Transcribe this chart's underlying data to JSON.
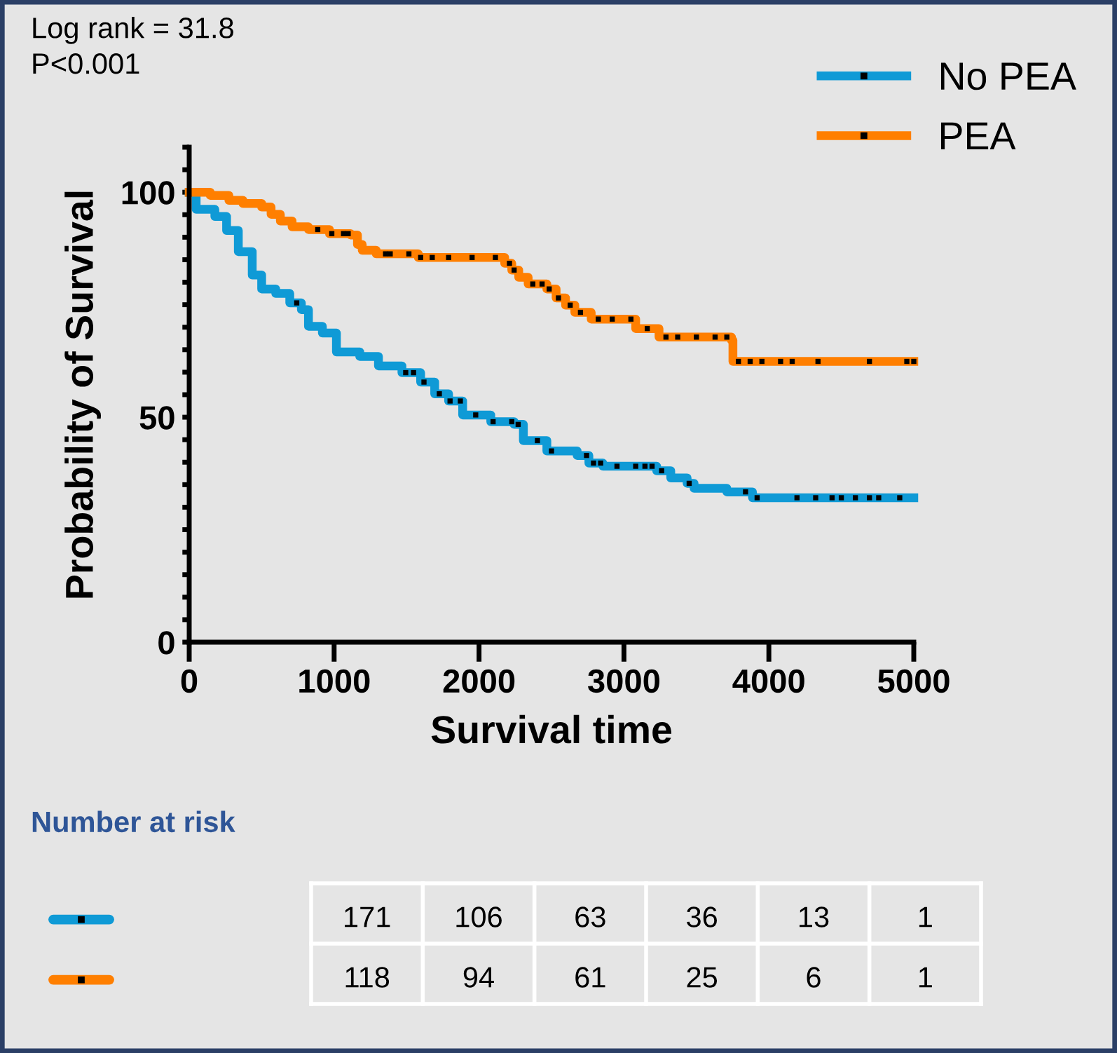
{
  "chart_data": {
    "type": "step",
    "xlabel": "Survival time",
    "ylabel": "Probability of Survival",
    "xlim": [
      0,
      5000
    ],
    "ylim": [
      0,
      110
    ],
    "xticks": [
      0,
      1000,
      2000,
      3000,
      4000,
      5000
    ],
    "yticks": [
      0,
      {
        "value": 5,
        "label": null
      },
      {
        "value": 10,
        "label": null
      },
      {
        "value": 15,
        "label": null
      },
      {
        "value": 20,
        "label": null
      },
      {
        "value": 25,
        "label": null
      },
      {
        "value": 30,
        "label": null
      },
      {
        "value": 35,
        "label": null
      },
      {
        "value": 40,
        "label": null
      },
      {
        "value": 45,
        "label": null
      },
      50,
      {
        "value": 55,
        "label": null
      },
      {
        "value": 60,
        "label": null
      },
      {
        "value": 65,
        "label": null
      },
      {
        "value": 70,
        "label": null
      },
      {
        "value": 75,
        "label": null
      },
      {
        "value": 80,
        "label": null
      },
      {
        "value": 85,
        "label": null
      },
      {
        "value": 90,
        "label": null
      },
      {
        "value": 95,
        "label": null
      },
      100,
      {
        "value": 105,
        "label": null
      },
      {
        "value": 110,
        "label": null
      }
    ],
    "grid": false,
    "legend": "top right",
    "annotations": [
      "Log rank = 31.8\nP<0.001",
      "Number at risk",
      "171",
      "106",
      "63",
      "36",
      "13",
      "1",
      "118",
      "94",
      "61",
      "25",
      "6",
      "1"
    ],
    "series": [
      {
        "name": "No PEA",
        "color": "#0f9ad6",
        "marker": "none",
        "x": [
          0,
          48,
          177,
          258,
          339,
          435,
          500,
          597,
          694,
          774,
          823,
          919,
          1016,
          1177,
          1306,
          1468,
          1597,
          1694,
          1790,
          1887,
          2081,
          2242,
          2306,
          2468,
          2677,
          2758,
          2855,
          3226,
          3323,
          3436,
          3484,
          3710,
          3887,
          5000
        ],
        "values": [
          100,
          96.2,
          94.6,
          91.5,
          86.8,
          81.6,
          78.5,
          77.5,
          75.4,
          73.9,
          70.2,
          68.7,
          64.5,
          63.5,
          61.4,
          59.9,
          57.8,
          55.2,
          53.6,
          50.5,
          49.0,
          48.4,
          44.8,
          42.5,
          41.5,
          39.8,
          39.1,
          38.1,
          36.5,
          35.3,
          34.2,
          33.4,
          32.1,
          32.1
        ]
      },
      {
        "name": "PEA",
        "color": "#ff7f00",
        "marker": "none",
        "x": [
          0,
          145,
          274,
          371,
          500,
          565,
          629,
          710,
          823,
          968,
          1113,
          1161,
          1194,
          1290,
          1581,
          2113,
          2177,
          2226,
          2274,
          2339,
          2468,
          2532,
          2597,
          2661,
          2774,
          3081,
          3242,
          3742,
          3752,
          5000
        ],
        "values": [
          100,
          99.3,
          98.2,
          97.5,
          96.7,
          95.1,
          93.6,
          92.3,
          91.7,
          90.8,
          90.5,
          88.4,
          87.1,
          86.3,
          85.5,
          85.5,
          84.2,
          82.7,
          81.1,
          79.6,
          78.5,
          76.5,
          74.9,
          73.3,
          71.8,
          69.7,
          67.8,
          67.1,
          62.4,
          62.4
        ]
      },
      {
        "type": "scatter",
        "color": "#000000",
        "marker": "square",
        "x": [
          742,
          1494,
          1548,
          1620,
          1726,
          1800,
          1871,
          1977,
          2097,
          2226,
          2270,
          2403,
          2500,
          2742,
          2790,
          2839,
          2952,
          3081,
          3145,
          3194,
          3260,
          3450,
          3839,
          3919,
          4194,
          4323,
          4436,
          4500,
          4597,
          4694,
          4758,
          4903
        ],
        "values": [
          75.4,
          59.9,
          59.9,
          57.8,
          55.2,
          53.6,
          53.6,
          50.5,
          49.0,
          49.0,
          48.4,
          44.8,
          42.5,
          41.5,
          39.8,
          39.8,
          39.1,
          39.1,
          39.1,
          39.1,
          38.1,
          35.3,
          33.4,
          32.1,
          32.1,
          32.1,
          32.1,
          32.1,
          32.1,
          32.1,
          32.1,
          32.1
        ]
      },
      {
        "type": "scatter",
        "color": "#000000",
        "marker": "square",
        "x": [
          887,
          984,
          1065,
          1097,
          1355,
          1387,
          1516,
          1597,
          1677,
          1790,
          1952,
          2113,
          2210,
          2242,
          2371,
          2435,
          2484,
          2548,
          2629,
          2700,
          2823,
          2919,
          3048,
          3161,
          3290,
          3371,
          3500,
          3629,
          3710,
          3790,
          3871,
          3952,
          4081,
          4161,
          4339,
          4694,
          4952,
          5000
        ],
        "values": [
          91.7,
          90.8,
          90.8,
          90.8,
          86.3,
          86.3,
          86.3,
          85.5,
          85.5,
          85.5,
          85.5,
          85.5,
          84.2,
          82.7,
          79.6,
          79.6,
          78.5,
          76.5,
          74.9,
          73.3,
          71.8,
          71.8,
          71.8,
          69.7,
          67.8,
          67.8,
          67.8,
          67.8,
          67.8,
          62.4,
          62.4,
          62.4,
          62.4,
          62.4,
          62.4,
          62.4,
          62.4,
          62.4
        ]
      }
    ]
  }
}
